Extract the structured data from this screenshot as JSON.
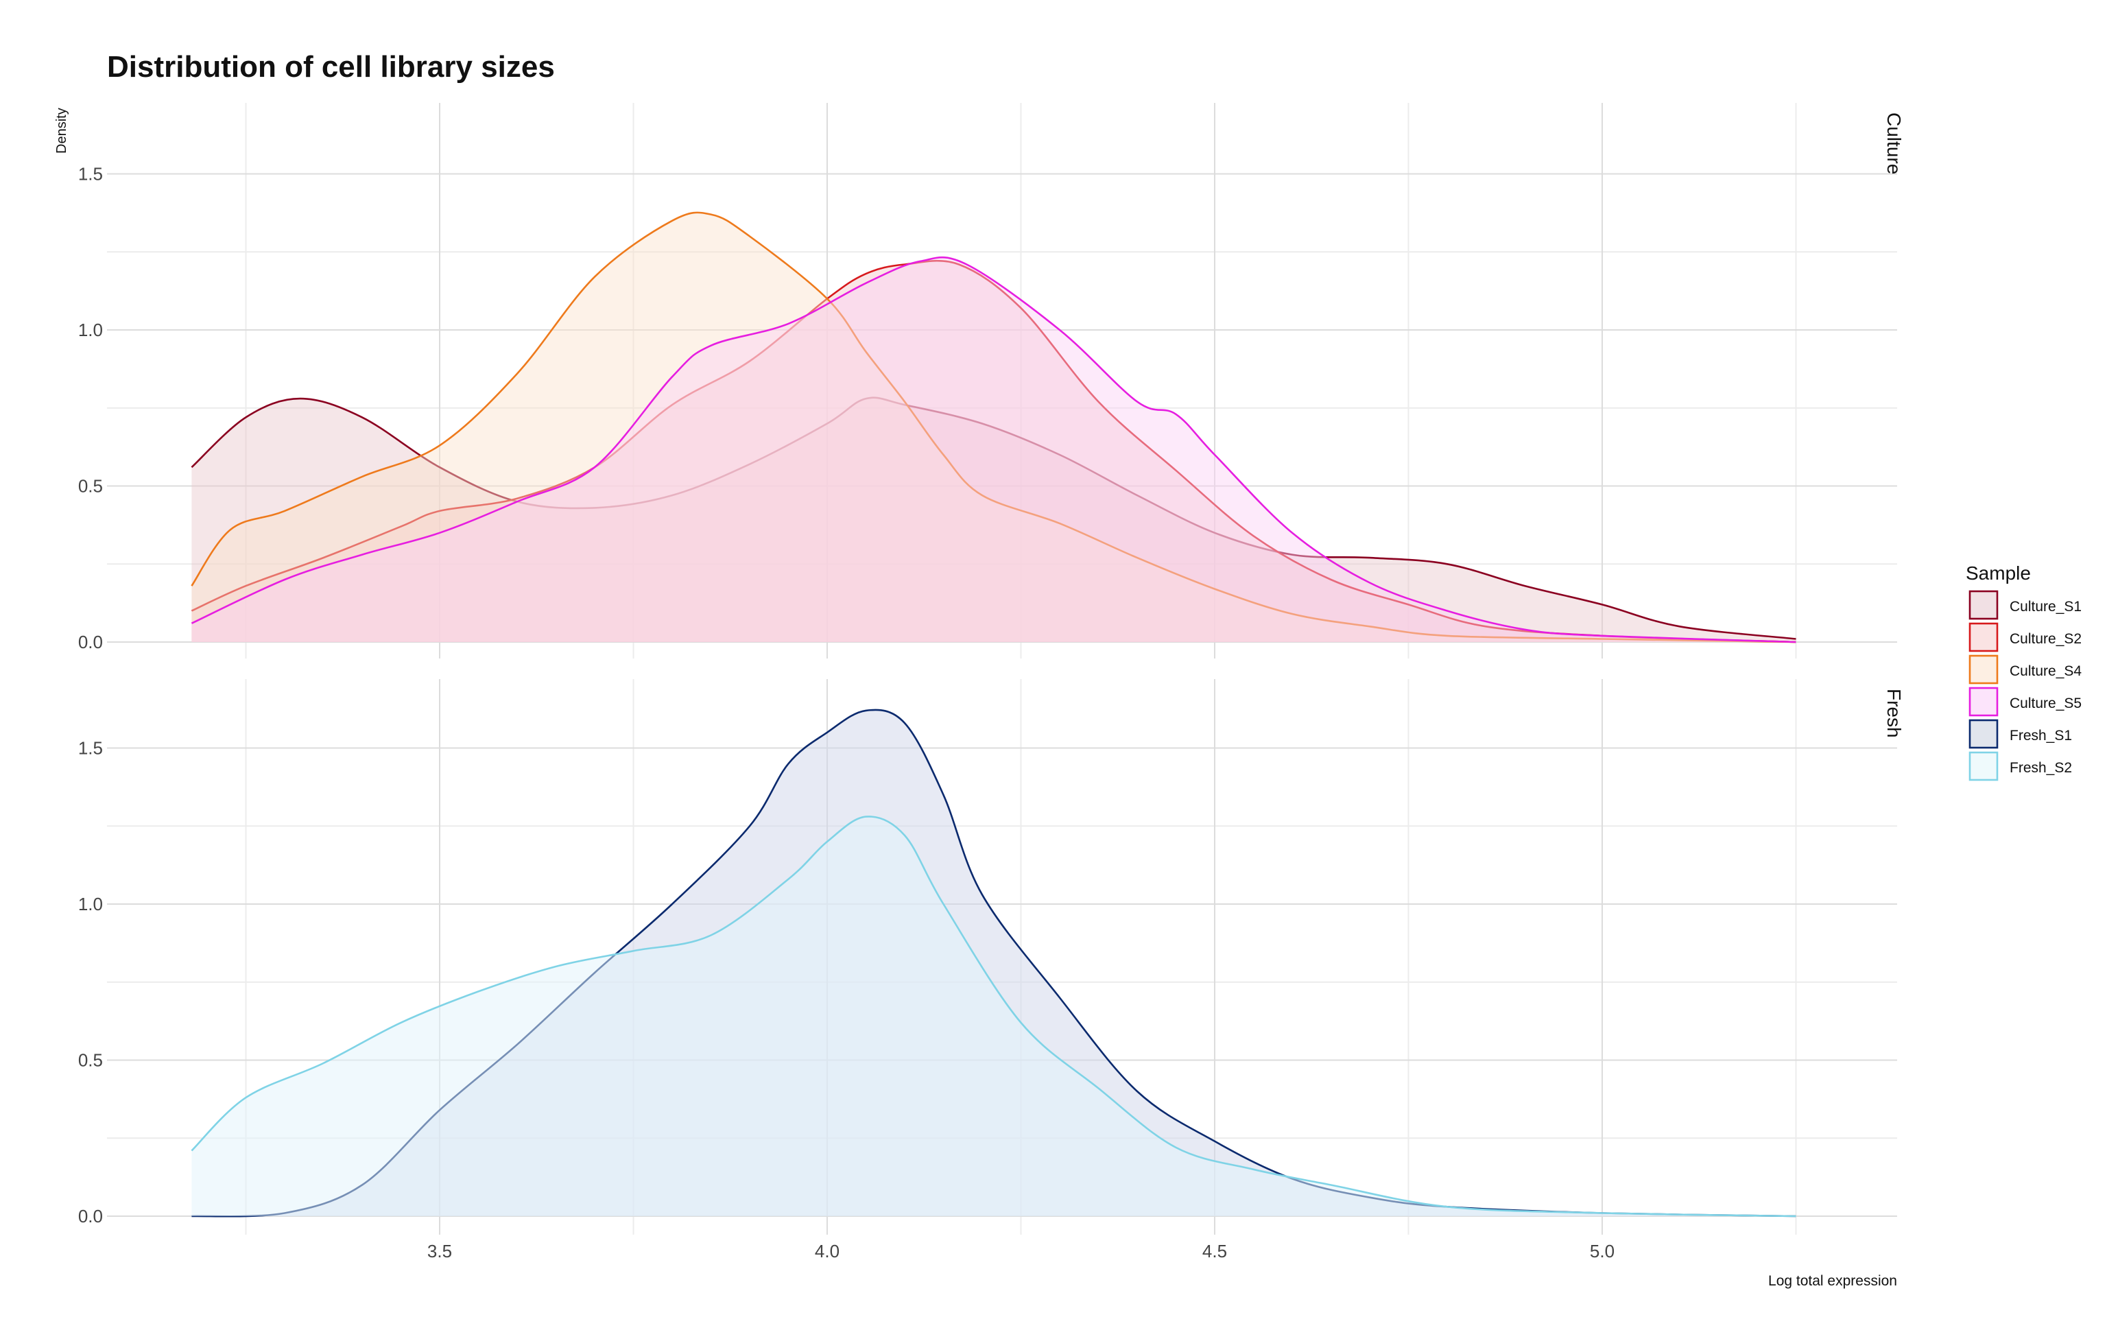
{
  "chart_data": {
    "type": "area",
    "title": "Distribution of cell library sizes",
    "xlabel": "Log total expression",
    "ylabel": "Density",
    "xlim": [
      3.18,
      5.25
    ],
    "x_ticks": [
      "3.5",
      "4.0",
      "4.5",
      "5.0"
    ],
    "grid": true,
    "legend": {
      "title": "Sample",
      "placement": "right",
      "entries": [
        {
          "name": "Culture_S1",
          "color": "#8b0020"
        },
        {
          "name": "Culture_S2",
          "color": "#d7191c"
        },
        {
          "name": "Culture_S4",
          "color": "#ee7a1c"
        },
        {
          "name": "Culture_S5",
          "color": "#e61ee0"
        },
        {
          "name": "Fresh_S1",
          "color": "#0b2a6e"
        },
        {
          "name": "Fresh_S2",
          "color": "#7fd3e6"
        }
      ]
    },
    "facets": [
      {
        "label": "Culture",
        "ylim": [
          0,
          1.65
        ],
        "y_ticks": [
          "0.0",
          "0.5",
          "1.0",
          "1.5"
        ],
        "series": [
          {
            "name": "Culture_S1",
            "color": "#8b0020",
            "fill": "#e8c7cc",
            "fill_opacity": 0.45,
            "points": [
              [
                3.18,
                0.56
              ],
              [
                3.25,
                0.72
              ],
              [
                3.32,
                0.78
              ],
              [
                3.4,
                0.72
              ],
              [
                3.5,
                0.56
              ],
              [
                3.6,
                0.45
              ],
              [
                3.7,
                0.43
              ],
              [
                3.8,
                0.47
              ],
              [
                3.9,
                0.57
              ],
              [
                4.0,
                0.7
              ],
              [
                4.05,
                0.78
              ],
              [
                4.1,
                0.76
              ],
              [
                4.2,
                0.7
              ],
              [
                4.3,
                0.6
              ],
              [
                4.4,
                0.47
              ],
              [
                4.5,
                0.35
              ],
              [
                4.6,
                0.28
              ],
              [
                4.7,
                0.27
              ],
              [
                4.8,
                0.25
              ],
              [
                4.9,
                0.18
              ],
              [
                5.0,
                0.12
              ],
              [
                5.1,
                0.05
              ],
              [
                5.25,
                0.01
              ]
            ]
          },
          {
            "name": "Culture_S2",
            "color": "#d7191c",
            "fill": "#f4c6c8",
            "fill_opacity": 0.45,
            "points": [
              [
                3.18,
                0.1
              ],
              [
                3.25,
                0.18
              ],
              [
                3.35,
                0.27
              ],
              [
                3.45,
                0.37
              ],
              [
                3.5,
                0.42
              ],
              [
                3.6,
                0.46
              ],
              [
                3.7,
                0.56
              ],
              [
                3.8,
                0.76
              ],
              [
                3.9,
                0.9
              ],
              [
                4.0,
                1.1
              ],
              [
                4.05,
                1.18
              ],
              [
                4.1,
                1.21
              ],
              [
                4.17,
                1.21
              ],
              [
                4.25,
                1.07
              ],
              [
                4.35,
                0.77
              ],
              [
                4.45,
                0.55
              ],
              [
                4.55,
                0.34
              ],
              [
                4.65,
                0.2
              ],
              [
                4.75,
                0.12
              ],
              [
                4.85,
                0.05
              ],
              [
                5.0,
                0.02
              ],
              [
                5.25,
                0.0
              ]
            ]
          },
          {
            "name": "Culture_S4",
            "color": "#ee7a1c",
            "fill": "#fbe3cc",
            "fill_opacity": 0.45,
            "points": [
              [
                3.18,
                0.18
              ],
              [
                3.23,
                0.36
              ],
              [
                3.3,
                0.42
              ],
              [
                3.4,
                0.53
              ],
              [
                3.5,
                0.63
              ],
              [
                3.6,
                0.86
              ],
              [
                3.7,
                1.17
              ],
              [
                3.8,
                1.35
              ],
              [
                3.85,
                1.37
              ],
              [
                3.9,
                1.3
              ],
              [
                4.0,
                1.1
              ],
              [
                4.05,
                0.93
              ],
              [
                4.1,
                0.77
              ],
              [
                4.15,
                0.6
              ],
              [
                4.2,
                0.47
              ],
              [
                4.3,
                0.38
              ],
              [
                4.4,
                0.27
              ],
              [
                4.5,
                0.17
              ],
              [
                4.6,
                0.09
              ],
              [
                4.7,
                0.05
              ],
              [
                4.8,
                0.02
              ],
              [
                5.0,
                0.01
              ],
              [
                5.25,
                0.0
              ]
            ]
          },
          {
            "name": "Culture_S5",
            "color": "#e61ee0",
            "fill": "#fad0f3",
            "fill_opacity": 0.45,
            "points": [
              [
                3.18,
                0.06
              ],
              [
                3.3,
                0.2
              ],
              [
                3.4,
                0.28
              ],
              [
                3.5,
                0.35
              ],
              [
                3.6,
                0.45
              ],
              [
                3.7,
                0.56
              ],
              [
                3.8,
                0.85
              ],
              [
                3.85,
                0.95
              ],
              [
                3.95,
                1.02
              ],
              [
                4.05,
                1.15
              ],
              [
                4.12,
                1.22
              ],
              [
                4.18,
                1.21
              ],
              [
                4.3,
                1.0
              ],
              [
                4.4,
                0.77
              ],
              [
                4.45,
                0.73
              ],
              [
                4.5,
                0.6
              ],
              [
                4.6,
                0.35
              ],
              [
                4.7,
                0.19
              ],
              [
                4.8,
                0.1
              ],
              [
                4.9,
                0.04
              ],
              [
                5.0,
                0.02
              ],
              [
                5.25,
                0.0
              ]
            ]
          }
        ]
      },
      {
        "label": "Fresh",
        "ylim": [
          0,
          1.65
        ],
        "y_ticks": [
          "0.0",
          "0.5",
          "1.0",
          "1.5"
        ],
        "series": [
          {
            "name": "Fresh_S1",
            "color": "#0b2a6e",
            "fill": "#cfd6ea",
            "fill_opacity": 0.5,
            "points": [
              [
                3.18,
                0.0
              ],
              [
                3.3,
                0.01
              ],
              [
                3.4,
                0.1
              ],
              [
                3.5,
                0.34
              ],
              [
                3.6,
                0.55
              ],
              [
                3.7,
                0.78
              ],
              [
                3.8,
                1.0
              ],
              [
                3.9,
                1.25
              ],
              [
                3.95,
                1.45
              ],
              [
                4.0,
                1.55
              ],
              [
                4.05,
                1.62
              ],
              [
                4.1,
                1.58
              ],
              [
                4.15,
                1.35
              ],
              [
                4.2,
                1.03
              ],
              [
                4.3,
                0.7
              ],
              [
                4.4,
                0.4
              ],
              [
                4.5,
                0.24
              ],
              [
                4.6,
                0.12
              ],
              [
                4.7,
                0.06
              ],
              [
                4.8,
                0.03
              ],
              [
                5.0,
                0.01
              ],
              [
                5.25,
                0.0
              ]
            ]
          },
          {
            "name": "Fresh_S2",
            "color": "#7fd3e6",
            "fill": "#e2f4fb",
            "fill_opacity": 0.5,
            "points": [
              [
                3.18,
                0.21
              ],
              [
                3.25,
                0.38
              ],
              [
                3.35,
                0.49
              ],
              [
                3.45,
                0.62
              ],
              [
                3.55,
                0.72
              ],
              [
                3.65,
                0.8
              ],
              [
                3.75,
                0.85
              ],
              [
                3.85,
                0.9
              ],
              [
                3.95,
                1.08
              ],
              [
                4.0,
                1.2
              ],
              [
                4.05,
                1.28
              ],
              [
                4.1,
                1.22
              ],
              [
                4.15,
                1.0
              ],
              [
                4.25,
                0.62
              ],
              [
                4.35,
                0.41
              ],
              [
                4.45,
                0.22
              ],
              [
                4.55,
                0.15
              ],
              [
                4.65,
                0.1
              ],
              [
                4.8,
                0.03
              ],
              [
                5.0,
                0.01
              ],
              [
                5.25,
                0.0
              ]
            ]
          }
        ]
      }
    ]
  }
}
